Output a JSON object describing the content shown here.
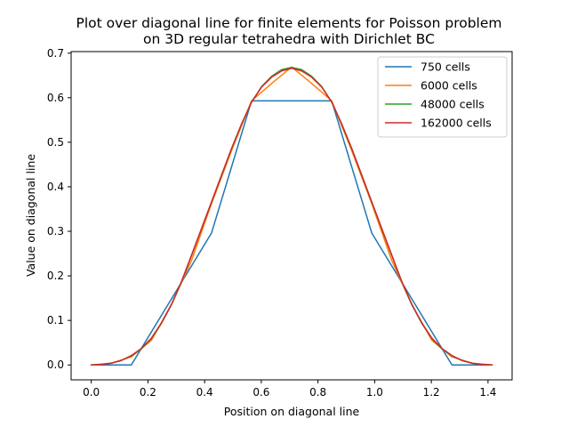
{
  "chart_data": {
    "type": "line",
    "title_lines": [
      "Plot over diagonal line for finite elements for Poisson problem",
      "on 3D regular tetrahedra with Dirichlet BC"
    ],
    "xlabel": "Position on diagonal line",
    "ylabel": "Value on diagonal line",
    "xlim": [
      -0.071,
      1.485
    ],
    "ylim": [
      -0.0335,
      0.7035
    ],
    "xticks": [
      0.0,
      0.2,
      0.4,
      0.6,
      0.8,
      1.0,
      1.2,
      1.4
    ],
    "xtick_labels": [
      "0.0",
      "0.2",
      "0.4",
      "0.6",
      "0.8",
      "1.0",
      "1.2",
      "1.4"
    ],
    "yticks": [
      0.0,
      0.1,
      0.2,
      0.3,
      0.4,
      0.5,
      0.6,
      0.7
    ],
    "ytick_labels": [
      "0.0",
      "0.1",
      "0.2",
      "0.3",
      "0.4",
      "0.5",
      "0.6",
      "0.7"
    ],
    "grid": false,
    "legend_position": "top-right",
    "series": [
      {
        "name": "750 cells",
        "color": "#1f77b4",
        "x": [
          0.0,
          0.1414,
          0.2828,
          0.4243,
          0.5657,
          0.7071,
          0.8485,
          0.9899,
          1.1314,
          1.2728,
          1.4142
        ],
        "y": [
          0.0,
          0.0,
          0.148,
          0.296,
          0.593,
          0.593,
          0.593,
          0.296,
          0.148,
          0.0,
          0.0
        ]
      },
      {
        "name": "6000 cells",
        "color": "#ff7f0e",
        "x": [
          0.0,
          0.0707,
          0.1414,
          0.2121,
          0.2828,
          0.3536,
          0.4243,
          0.495,
          0.5657,
          0.6364,
          0.7071,
          0.7778,
          0.8485,
          0.9192,
          0.9899,
          1.0607,
          1.1314,
          1.2021,
          1.2728,
          1.3435,
          1.4142
        ],
        "y": [
          0.0,
          0.004,
          0.018,
          0.055,
          0.135,
          0.234,
          0.362,
          0.481,
          0.593,
          0.632,
          0.669,
          0.632,
          0.593,
          0.481,
          0.362,
          0.234,
          0.135,
          0.055,
          0.018,
          0.004,
          0.0
        ]
      },
      {
        "name": "48000 cells",
        "color": "#2ca02c",
        "x": [
          0.0,
          0.0354,
          0.0707,
          0.1061,
          0.1414,
          0.1768,
          0.2121,
          0.2475,
          0.2828,
          0.3182,
          0.3536,
          0.3889,
          0.4243,
          0.4596,
          0.495,
          0.5303,
          0.5657,
          0.6011,
          0.6364,
          0.6718,
          0.7071,
          0.7425,
          0.7778,
          0.8132,
          0.8485,
          0.8839,
          0.9192,
          0.9546,
          0.9899,
          1.0253,
          1.0607,
          1.096,
          1.1314,
          1.1667,
          1.2021,
          1.2374,
          1.2728,
          1.3081,
          1.3435,
          1.3789,
          1.4142
        ],
        "y": [
          0.0,
          0.001,
          0.004,
          0.01,
          0.02,
          0.036,
          0.059,
          0.093,
          0.135,
          0.186,
          0.245,
          0.305,
          0.365,
          0.425,
          0.485,
          0.54,
          0.59,
          0.625,
          0.648,
          0.663,
          0.668,
          0.663,
          0.648,
          0.625,
          0.59,
          0.54,
          0.485,
          0.425,
          0.365,
          0.305,
          0.245,
          0.186,
          0.135,
          0.093,
          0.059,
          0.036,
          0.02,
          0.01,
          0.004,
          0.001,
          0.0
        ]
      },
      {
        "name": "162000 cells",
        "color": "#d62728",
        "x": [
          0.0,
          0.0354,
          0.0707,
          0.1061,
          0.1414,
          0.1768,
          0.2121,
          0.2475,
          0.2828,
          0.3182,
          0.3536,
          0.3889,
          0.4243,
          0.4596,
          0.495,
          0.5303,
          0.5657,
          0.6011,
          0.6364,
          0.6718,
          0.7071,
          0.7425,
          0.7778,
          0.8132,
          0.8485,
          0.8839,
          0.9192,
          0.9546,
          0.9899,
          1.0253,
          1.0607,
          1.096,
          1.1314,
          1.1667,
          1.2021,
          1.2374,
          1.2728,
          1.3081,
          1.3435,
          1.3789,
          1.4142
        ],
        "y": [
          0.0,
          0.001,
          0.004,
          0.01,
          0.021,
          0.037,
          0.06,
          0.094,
          0.136,
          0.187,
          0.246,
          0.306,
          0.366,
          0.426,
          0.486,
          0.541,
          0.59,
          0.624,
          0.646,
          0.66,
          0.666,
          0.66,
          0.646,
          0.624,
          0.59,
          0.541,
          0.486,
          0.426,
          0.366,
          0.306,
          0.246,
          0.187,
          0.136,
          0.094,
          0.06,
          0.037,
          0.021,
          0.01,
          0.004,
          0.001,
          0.0
        ]
      }
    ]
  }
}
